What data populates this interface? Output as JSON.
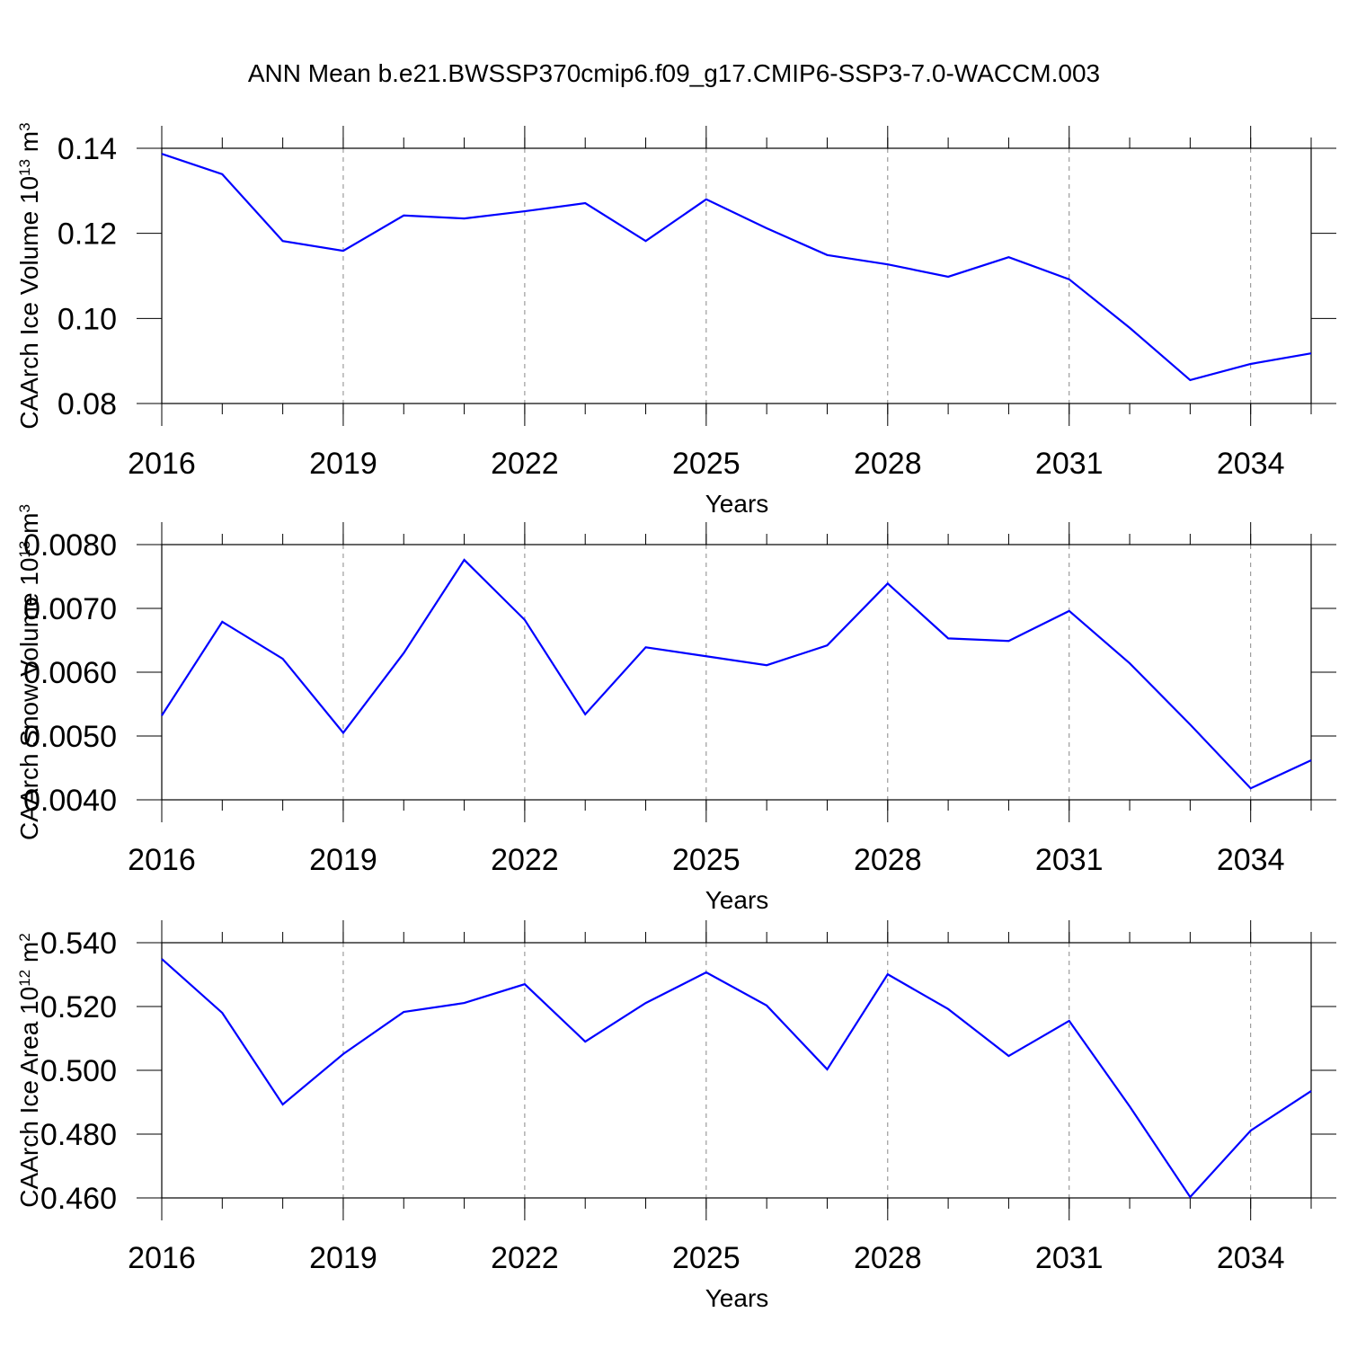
{
  "title": "ANN Mean b.e21.BWSSP370cmip6.f09_g17.CMIP6-SSP3-7.0-WACCM.003",
  "chart_data": [
    {
      "type": "line",
      "ylabel": [
        "CAArch Ice Volume 10",
        "13",
        " m",
        "3"
      ],
      "xlabel": "Years",
      "x": [
        2016,
        2017,
        2018,
        2019,
        2020,
        2021,
        2022,
        2023,
        2024,
        2025,
        2026,
        2027,
        2028,
        2029,
        2030,
        2031,
        2032,
        2033,
        2034,
        2035
      ],
      "xlim": [
        2016,
        2035
      ],
      "xticks": [
        2016,
        2019,
        2022,
        2025,
        2028,
        2031,
        2034
      ],
      "ylim": [
        0.08,
        0.14
      ],
      "yticks": [
        0.14,
        0.12,
        {
          "value": 0.1,
          "label": "0.10"
        },
        0.08
      ],
      "grid": true,
      "series": [
        {
          "color": "#0000ff",
          "values": [
            0.1387,
            0.1339,
            0.1182,
            0.1159,
            0.1242,
            0.1235,
            0.1252,
            0.1271,
            0.1182,
            0.128,
            0.1212,
            0.1149,
            0.1127,
            0.1098,
            0.1144,
            0.1092,
            0.0978,
            0.0855,
            0.0893,
            0.0918
          ]
        }
      ]
    },
    {
      "type": "line",
      "ylabel": [
        "CAArch Snow Volume 10",
        "13",
        " m",
        "3"
      ],
      "xlabel": "Years",
      "x": [
        2016,
        2017,
        2018,
        2019,
        2020,
        2021,
        2022,
        2023,
        2024,
        2025,
        2026,
        2027,
        2028,
        2029,
        2030,
        2031,
        2032,
        2033,
        2034,
        2035
      ],
      "xlim": [
        2016,
        2035
      ],
      "xticks": [
        2016,
        2019,
        2022,
        2025,
        2028,
        2031,
        2034
      ],
      "ylim": [
        0.004,
        0.008
      ],
      "yticks": [
        {
          "value": 0.008,
          "label": "0.0080"
        },
        {
          "value": 0.007,
          "label": "0.0070"
        },
        {
          "value": 0.006,
          "label": "0.0060"
        },
        {
          "value": 0.005,
          "label": "0.0050"
        },
        {
          "value": 0.004,
          "label": "0.0040"
        }
      ],
      "grid": true,
      "series": [
        {
          "color": "#0000ff",
          "values": [
            0.00532,
            0.00679,
            0.00621,
            0.00505,
            0.0063,
            0.00776,
            0.00682,
            0.00534,
            0.00639,
            0.00625,
            0.00611,
            0.00642,
            0.00739,
            0.00653,
            0.00649,
            0.00696,
            0.00614,
            0.00518,
            0.00418,
            0.00462
          ]
        }
      ]
    },
    {
      "type": "line",
      "ylabel": [
        "CAArch Ice Area 10",
        "12",
        " m",
        "2"
      ],
      "xlabel": "Years",
      "x": [
        2016,
        2017,
        2018,
        2019,
        2020,
        2021,
        2022,
        2023,
        2024,
        2025,
        2026,
        2027,
        2028,
        2029,
        2030,
        2031,
        2032,
        2033,
        2034,
        2035
      ],
      "xlim": [
        2016,
        2035
      ],
      "xticks": [
        2016,
        2019,
        2022,
        2025,
        2028,
        2031,
        2034
      ],
      "ylim": [
        0.46,
        0.54
      ],
      "yticks": [
        {
          "value": 0.54,
          "label": "0.540"
        },
        {
          "value": 0.52,
          "label": "0.520"
        },
        {
          "value": 0.5,
          "label": "0.500"
        },
        {
          "value": 0.48,
          "label": "0.480"
        },
        {
          "value": 0.46,
          "label": "0.460"
        }
      ],
      "grid": true,
      "series": [
        {
          "color": "#0000ff",
          "values": [
            0.5349,
            0.518,
            0.4893,
            0.5051,
            0.5183,
            0.5211,
            0.527,
            0.509,
            0.5211,
            0.5307,
            0.5203,
            0.5003,
            0.5301,
            0.5192,
            0.5045,
            0.5155,
            0.4887,
            0.4603,
            0.4811,
            0.4935
          ]
        }
      ]
    }
  ]
}
